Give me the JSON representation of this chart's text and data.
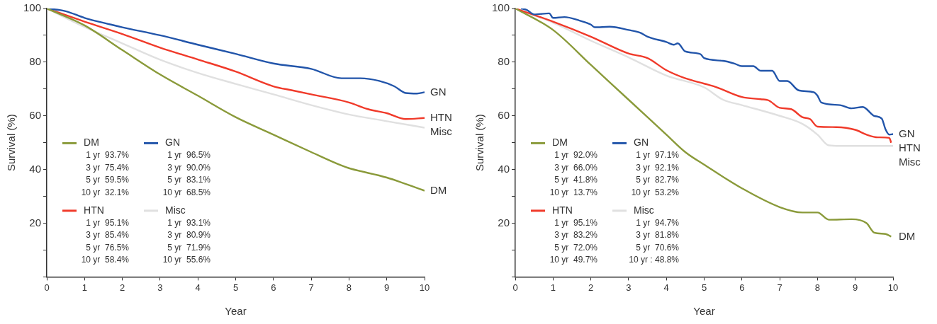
{
  "chart_data": [
    {
      "type": "line",
      "xlabel": "Year",
      "ylabel": "Survival (%)",
      "xlim": [
        0,
        10
      ],
      "xticks": [
        0,
        1,
        2,
        3,
        4,
        5,
        6,
        7,
        8,
        9,
        10
      ],
      "ylim": [
        0,
        100
      ],
      "yticks": [
        {
          "value": 0,
          "label": null
        },
        {
          "value": 10,
          "label": null
        },
        20,
        {
          "value": 30,
          "label": null
        },
        40,
        {
          "value": 50,
          "label": null
        },
        60,
        {
          "value": 70,
          "label": null
        },
        80,
        {
          "value": 90,
          "label": null
        },
        100
      ],
      "legend": "bottom left",
      "marker": "none",
      "line_style": "solid",
      "series": [
        {
          "name": "DM",
          "color": "#8a9a3a",
          "x": [
            0,
            1,
            2,
            3,
            4,
            5,
            6,
            7,
            7.8,
            8,
            9,
            10
          ],
          "values": [
            100,
            93.7,
            84.5,
            75.4,
            67.5,
            59.5,
            53,
            46.5,
            41.5,
            40.5,
            37,
            32.1
          ]
        },
        {
          "name": "GN",
          "color": "#2255aa",
          "x": [
            0,
            0.5,
            1,
            1.7,
            2,
            3,
            4,
            5,
            6,
            7,
            7.8,
            8.3,
            8.8,
            9.2,
            9.5,
            9.8,
            10
          ],
          "values": [
            100,
            99,
            96.5,
            94,
            93,
            90,
            86.5,
            83.1,
            79.5,
            77.5,
            74,
            74,
            73,
            71,
            68.5,
            68.3,
            68.8
          ]
        },
        {
          "name": "HTN",
          "color": "#f03a2a",
          "x": [
            0,
            1,
            2,
            3,
            4,
            5,
            6,
            6.5,
            7,
            8,
            8.5,
            9,
            9.5,
            10
          ],
          "values": [
            100,
            95.1,
            90.5,
            85.4,
            81,
            76.5,
            71,
            69.5,
            68,
            65,
            62.5,
            61,
            58.8,
            59.2
          ]
        },
        {
          "name": "Misc",
          "color": "#e0e0e0",
          "x": [
            0,
            1,
            2,
            3,
            4,
            5,
            6,
            7,
            8,
            9,
            10
          ],
          "values": [
            100,
            93.1,
            87,
            80.9,
            76,
            71.9,
            68,
            64,
            60.5,
            58,
            55.6
          ]
        }
      ],
      "annotations": [
        "1 yr  93.7%",
        "3 yr  75.4%",
        "5 yr  59.5%",
        "10 yr  32.1%",
        "1 yr  96.5%",
        "3 yr  90.0%",
        "5 yr  83.1%",
        "10 yr  68.5%",
        "1 yr  95.1%",
        "3 yr  85.4%",
        "5 yr  76.5%",
        "10 yr  58.4%",
        "1 yr  93.1%",
        "3 yr  80.9%",
        "5 yr  71.9%",
        "10 yr  55.6%"
      ]
    },
    {
      "type": "line",
      "xlabel": "Year",
      "ylabel": "Survival (%)",
      "xlim": [
        0,
        10
      ],
      "xticks": [
        0,
        1,
        2,
        3,
        4,
        5,
        6,
        7,
        8,
        9,
        10
      ],
      "ylim": [
        0,
        100
      ],
      "yticks": [
        {
          "value": 0,
          "label": null
        },
        {
          "value": 10,
          "label": null
        },
        20,
        {
          "value": 30,
          "label": null
        },
        40,
        {
          "value": 50,
          "label": null
        },
        60,
        {
          "value": 70,
          "label": null
        },
        80,
        {
          "value": 90,
          "label": null
        },
        100
      ],
      "legend": "bottom left",
      "marker": "none",
      "line_style": "solid",
      "series": [
        {
          "name": "DM",
          "color": "#8a9a3a",
          "x": [
            0,
            1,
            2,
            3,
            4,
            4.5,
            5,
            6,
            7,
            7.6,
            8,
            8.3,
            8.9,
            9.3,
            9.5,
            9.8,
            9.95
          ],
          "values": [
            100,
            92,
            79,
            66,
            53,
            46.5,
            41.8,
            33,
            26,
            24,
            24,
            21.3,
            21.5,
            20,
            16.5,
            16,
            15
          ]
        },
        {
          "name": "GN",
          "color": "#2255aa",
          "x": [
            0.15,
            0.3,
            0.5,
            0.9,
            1,
            1.3,
            1.7,
            2,
            2.1,
            2.5,
            3,
            3.3,
            3.5,
            4,
            4.2,
            4.3,
            4.5,
            4.9,
            5,
            5.5,
            5.8,
            6,
            6.3,
            6.5,
            6.8,
            7,
            7.2,
            7.5,
            7.9,
            8,
            8.1,
            8.6,
            8.9,
            9.2,
            9.5,
            9.7,
            9.8,
            9.9,
            10
          ],
          "values": [
            100,
            99.5,
            97.8,
            98.2,
            96.5,
            96.8,
            95.5,
            94,
            93,
            93.2,
            92,
            91,
            89.5,
            87.5,
            86.5,
            87,
            84,
            83,
            81.5,
            80.5,
            79.5,
            78.5,
            78.5,
            76.8,
            76.8,
            73,
            73,
            69.5,
            68.8,
            67.5,
            65,
            64,
            62.8,
            63.3,
            60,
            59,
            55,
            53,
            53.2
          ]
        },
        {
          "name": "HTN",
          "color": "#f03a2a",
          "x": [
            0,
            1,
            2,
            3,
            3.5,
            4,
            4.5,
            5,
            5.3,
            6,
            6.5,
            6.7,
            7,
            7.3,
            7.6,
            7.8,
            8,
            8.5,
            9,
            9.3,
            9.6,
            9.9,
            9.95
          ],
          "values": [
            100,
            95.1,
            89.5,
            83.2,
            81.5,
            77,
            74,
            72,
            70.8,
            67,
            66.2,
            65.8,
            63,
            62.5,
            59.5,
            58.8,
            56,
            55.8,
            54.8,
            53,
            52,
            51.8,
            50
          ]
        },
        {
          "name": "Misc",
          "color": "#e0e0e0",
          "x": [
            0,
            1,
            2,
            3,
            4,
            5,
            5.5,
            6,
            7,
            7.6,
            8,
            8.3,
            8.6,
            10
          ],
          "values": [
            100,
            94.7,
            88,
            81.8,
            75,
            70.6,
            66,
            64,
            60,
            57,
            53,
            49,
            48.8,
            48.8
          ]
        }
      ],
      "annotations": [
        "1 yr  92.0%",
        "3 yr  66.0%",
        "5 yr  41.8%",
        "10 yr  13.7%",
        "1 yr  97.1%",
        "3 yr  92.1%",
        "5 yr  82.7%",
        "10 yr  53.2%",
        "1 yr  95.1%",
        "3 yr  83.2%",
        "5 yr  72.0%",
        "10 yr  49.7%",
        "1 yr  94.7%",
        "3 yr  81.8%",
        "5 yr  70.6%",
        "10 yr : 48.8%"
      ]
    }
  ]
}
